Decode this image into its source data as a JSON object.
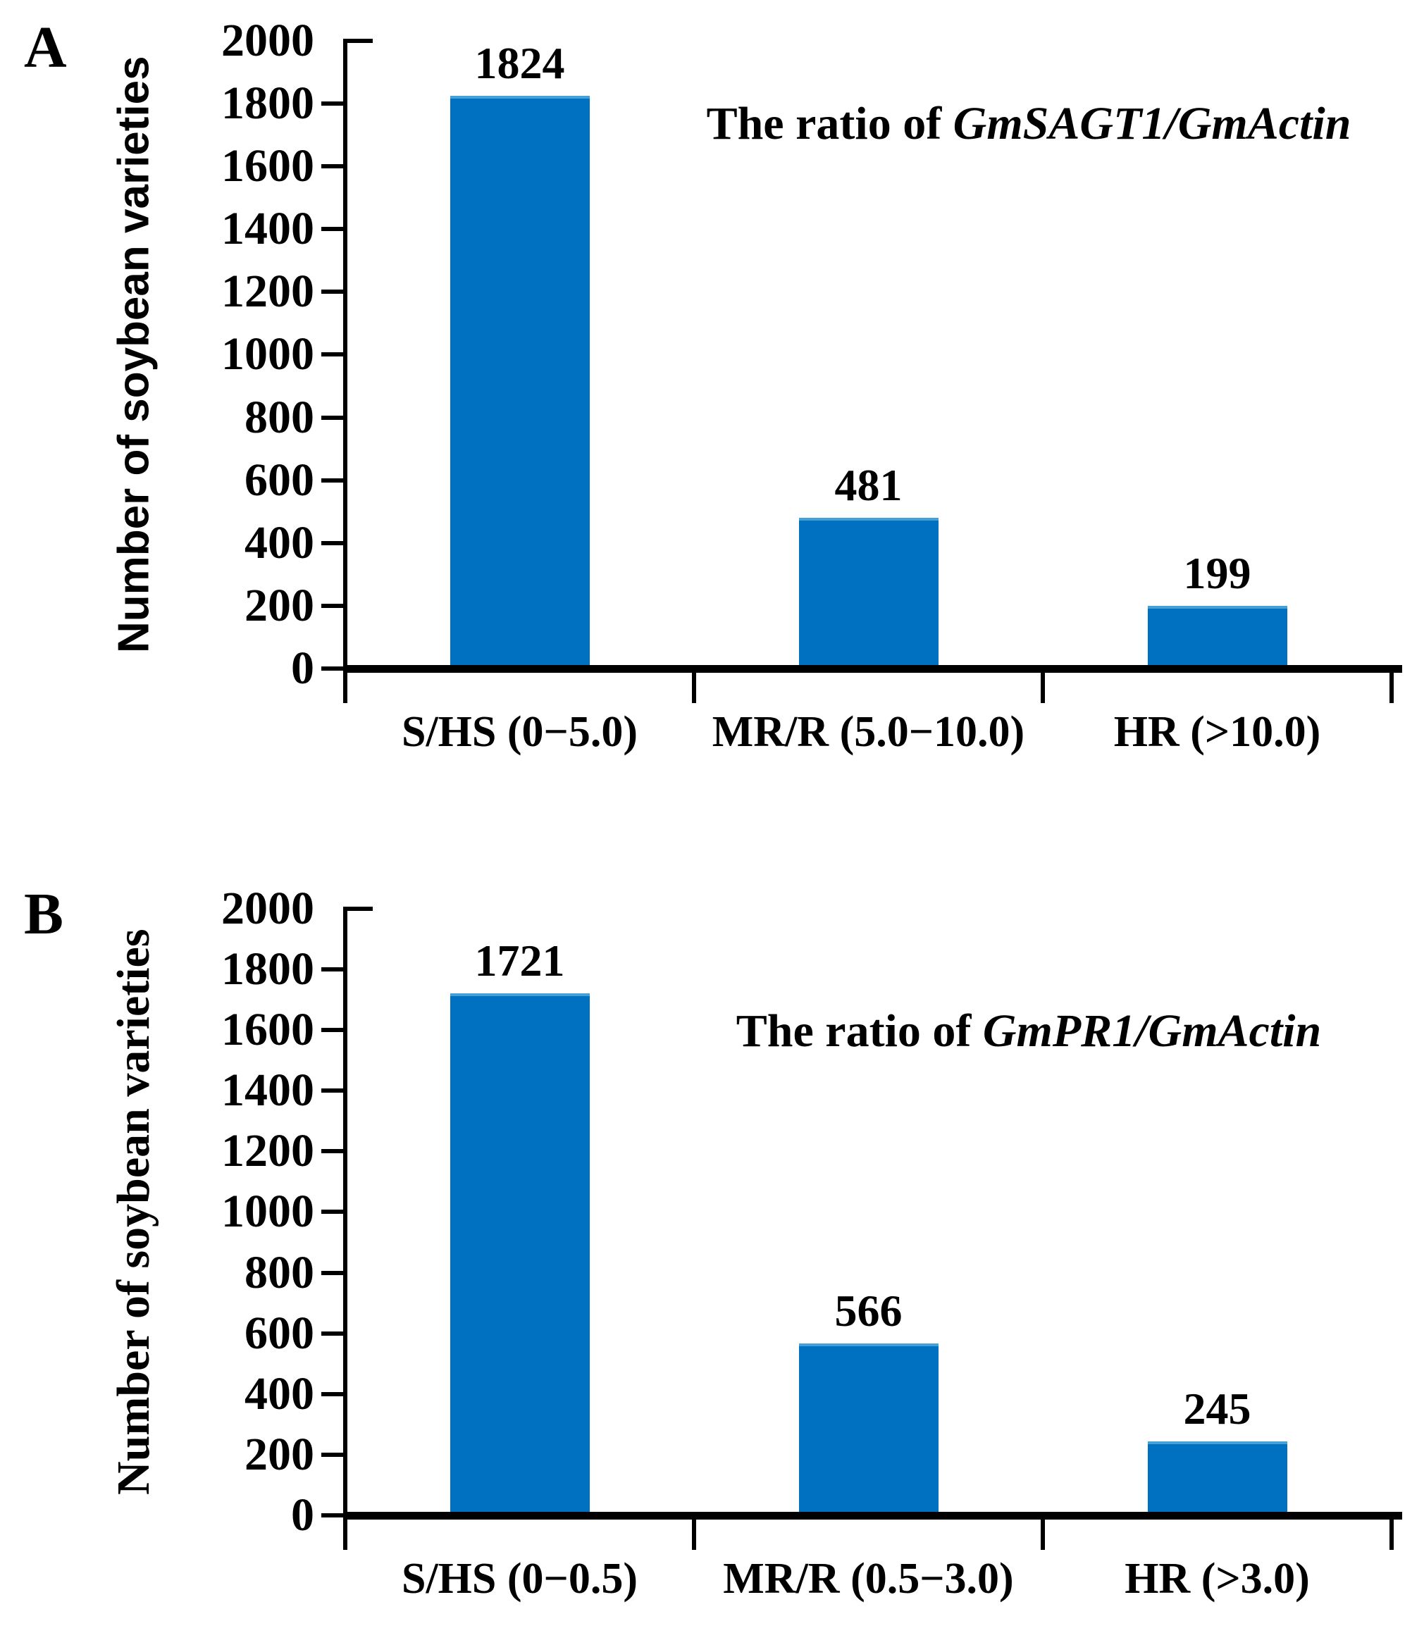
{
  "chart_data": [
    {
      "type": "bar",
      "panel_label": "A",
      "title_prefix": "The ratio of ",
      "title_gene": "GmSAGT1/GmActin",
      "title": "The ratio of GmSAGT1/GmActin",
      "ylabel": "Number of soybean varieties",
      "categories": [
        "S/HS (0−5.0)",
        "MR/R (5.0−10.0)",
        "HR (>10.0)"
      ],
      "values": [
        1824,
        481,
        199
      ],
      "ylim": [
        0,
        2000
      ],
      "yticks": [
        0,
        200,
        400,
        600,
        800,
        1000,
        1200,
        1400,
        1600,
        1800,
        2000
      ],
      "bar_color": "#0070C0",
      "grid": false,
      "legend_position": "none"
    },
    {
      "type": "bar",
      "panel_label": "B",
      "title_prefix": "The ratio of ",
      "title_gene": "GmPR1/GmActin",
      "title": "The ratio of GmPR1/GmActin",
      "ylabel": "Number of soybean varieties",
      "categories": [
        "S/HS (0−0.5)",
        "MR/R (0.5−3.0)",
        "HR (>3.0)"
      ],
      "values": [
        1721,
        566,
        245
      ],
      "ylim": [
        0,
        2000
      ],
      "yticks": [
        0,
        200,
        400,
        600,
        800,
        1000,
        1200,
        1400,
        1600,
        1800,
        2000
      ],
      "bar_color": "#0070C0",
      "grid": false,
      "legend_position": "none"
    }
  ]
}
